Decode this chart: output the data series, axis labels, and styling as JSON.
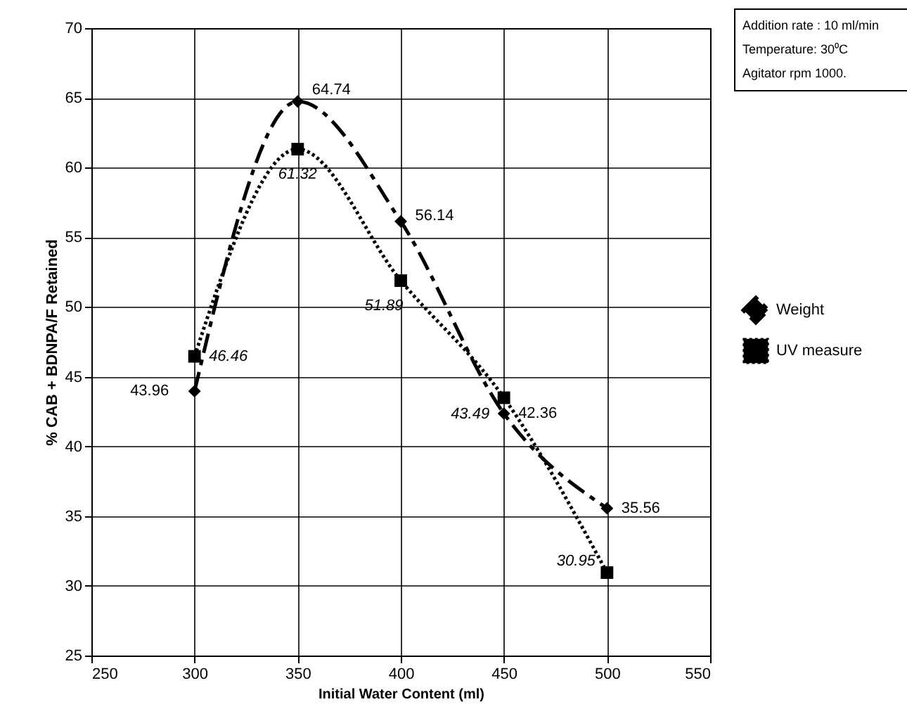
{
  "chart_data": {
    "type": "line",
    "xlabel": "Initial Water Content (ml)",
    "ylabel": "% CAB + BDNPA/F Retained",
    "x": [
      300,
      350,
      400,
      450,
      500
    ],
    "series": [
      {
        "name": "Weight",
        "color": "#000000",
        "marker": "diamond",
        "line_style": "dashed",
        "values": [
          43.96,
          64.74,
          56.14,
          42.36,
          35.56
        ]
      },
      {
        "name": "UV measure",
        "color": "#000000",
        "marker": "square",
        "line_style": "dotted",
        "values": [
          46.46,
          61.32,
          51.89,
          43.49,
          30.95
        ]
      }
    ],
    "xlim": [
      250,
      550
    ],
    "xticks": [
      250,
      300,
      350,
      400,
      450,
      500,
      550
    ],
    "ylim": [
      25,
      70
    ],
    "yticks": [
      25,
      30,
      35,
      40,
      45,
      50,
      55,
      60,
      65,
      70
    ],
    "grid": true,
    "legend": "right",
    "data_labels": true,
    "annotations": [
      "Addition rate : 10 ml/min",
      "Temperature: 30⁰C",
      "Agitator rpm 1000."
    ]
  }
}
